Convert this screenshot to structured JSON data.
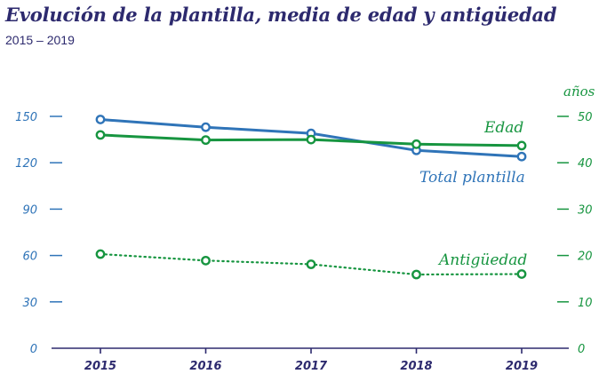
{
  "title": "Evolución de la plantilla, media de edad y antigüedad",
  "subtitle": "2015 – 2019",
  "chart_data": {
    "type": "line",
    "x": [
      "2015",
      "2016",
      "2017",
      "2018",
      "2019"
    ],
    "y_left": {
      "ticks": [
        "0",
        "30",
        "60",
        "90",
        "120",
        "150"
      ],
      "ylim": [
        0,
        150
      ]
    },
    "y_right": {
      "label": "años",
      "ticks": [
        "0",
        "10",
        "20",
        "30",
        "40",
        "50"
      ],
      "ylim": [
        0,
        50
      ]
    },
    "series": [
      {
        "name": "Total plantilla",
        "axis": "left",
        "color": "#2f74b8",
        "style": "solid",
        "values": [
          148,
          143,
          139,
          128,
          124
        ]
      },
      {
        "name": "Edad",
        "axis": "right",
        "color": "#179540",
        "style": "solid",
        "values": [
          46,
          44.9,
          45,
          44,
          43.7
        ]
      },
      {
        "name": "Antigüedad",
        "axis": "right",
        "color": "#179540",
        "style": "dotted",
        "values": [
          20.3,
          18.9,
          18.1,
          15.9,
          16
        ]
      }
    ],
    "grid": false,
    "legend": "inline labels"
  }
}
